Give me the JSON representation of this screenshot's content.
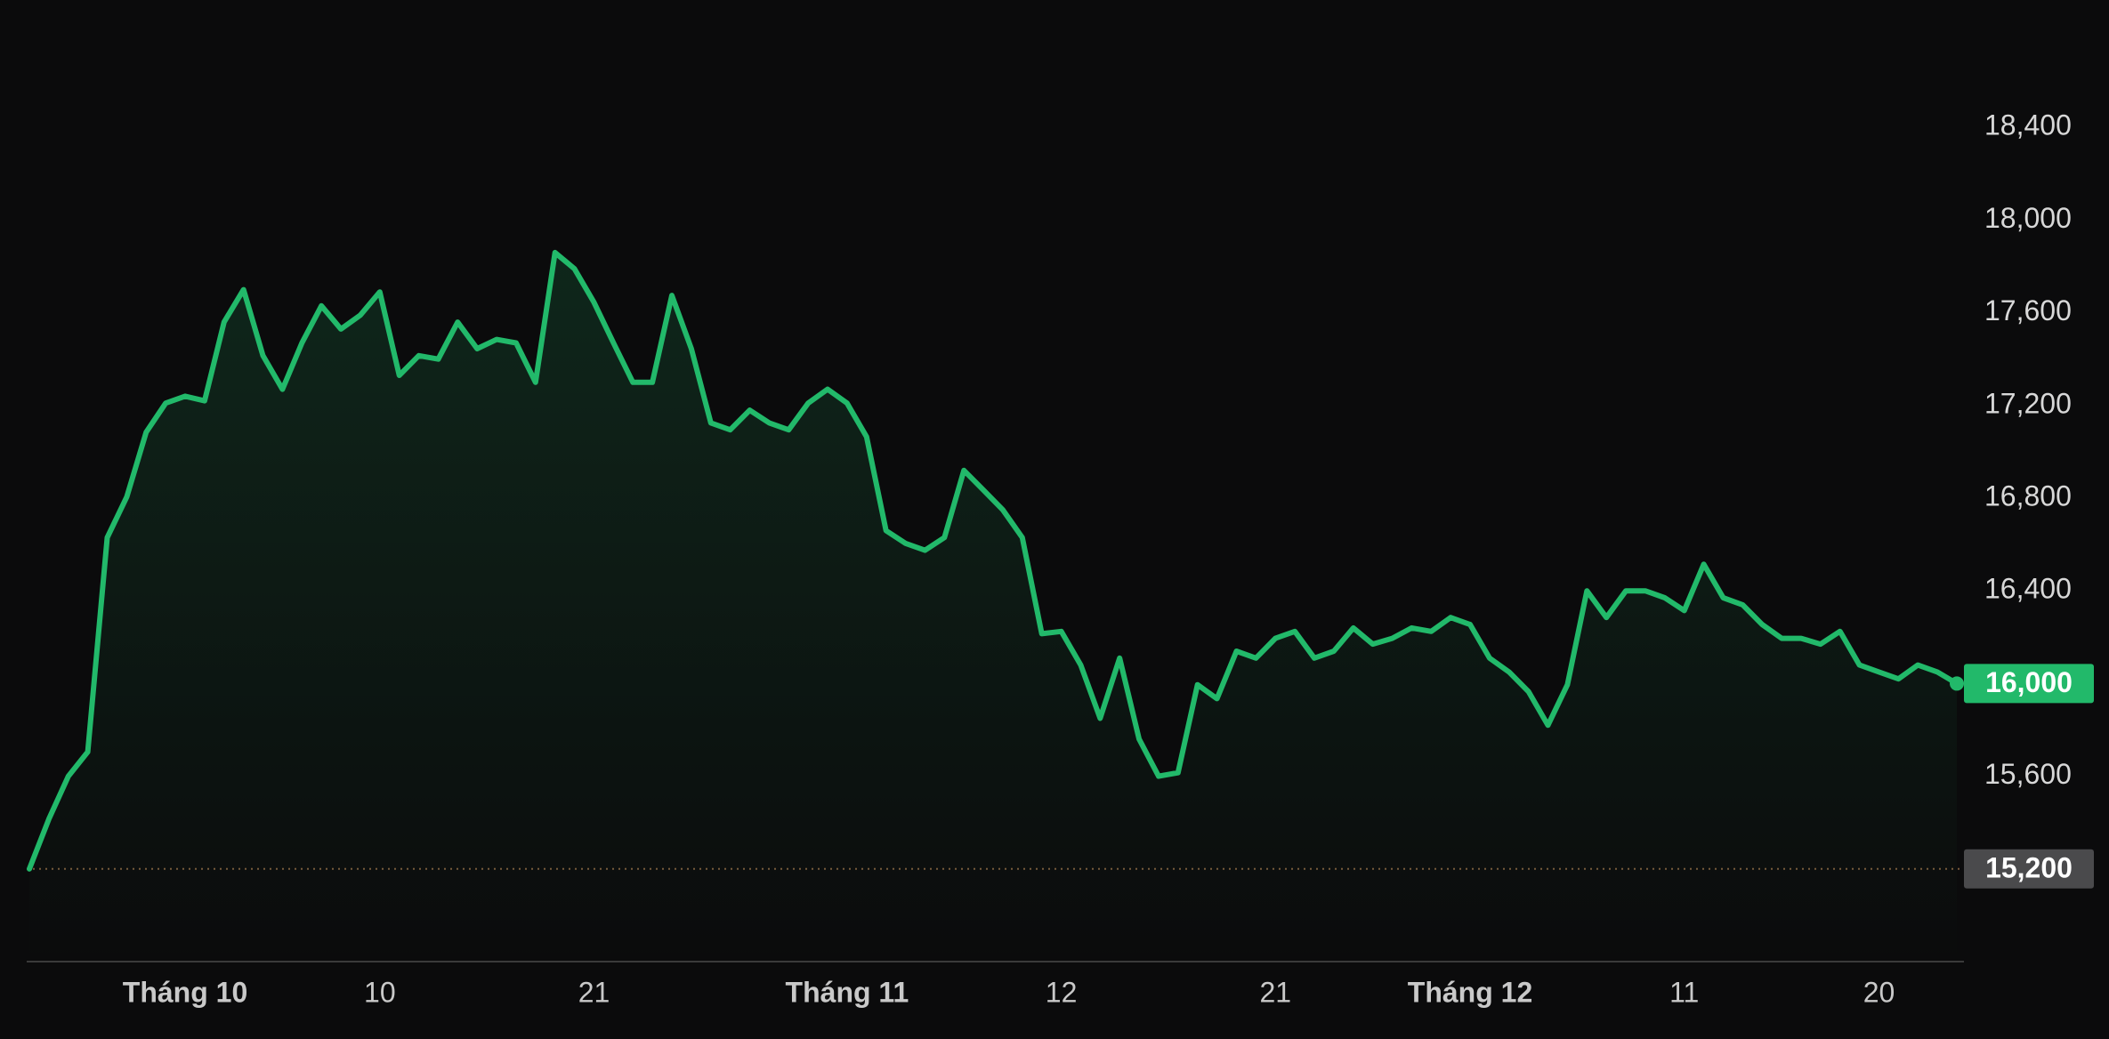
{
  "chart_data": {
    "type": "line",
    "categories": [
      null,
      null,
      null,
      null,
      null,
      null,
      null,
      null,
      "Tháng 10",
      null,
      null,
      null,
      null,
      null,
      null,
      null,
      null,
      null,
      "10",
      null,
      null,
      null,
      null,
      null,
      null,
      null,
      null,
      null,
      null,
      "21",
      null,
      null,
      null,
      null,
      null,
      null,
      null,
      null,
      null,
      null,
      null,
      null,
      "Tháng 11",
      null,
      null,
      null,
      null,
      null,
      null,
      null,
      null,
      null,
      null,
      "12",
      null,
      null,
      null,
      null,
      null,
      null,
      null,
      null,
      null,
      null,
      "21",
      null,
      null,
      null,
      null,
      null,
      null,
      null,
      null,
      null,
      "Tháng 12",
      null,
      null,
      null,
      null,
      null,
      null,
      null,
      null,
      null,
      null,
      "11",
      null,
      null,
      null,
      null,
      null,
      null,
      null,
      null,
      null,
      "20",
      null,
      null,
      null,
      null
    ],
    "series": [
      {
        "color": "#22b96a",
        "values": [
          15200,
          15415,
          15600,
          15705,
          16630,
          16805,
          17085,
          17210,
          17240,
          17220,
          17560,
          17700,
          17415,
          17270,
          17470,
          17630,
          17530,
          17590,
          17690,
          17330,
          17415,
          17400,
          17560,
          17445,
          17485,
          17470,
          17300,
          17860,
          17790,
          17645,
          17470,
          17300,
          17300,
          17675,
          17445,
          17125,
          17095,
          17180,
          17125,
          17095,
          17210,
          17270,
          17210,
          17065,
          16660,
          16605,
          16575,
          16630,
          16920,
          16835,
          16750,
          16630,
          16215,
          16225,
          16080,
          15850,
          16110,
          15760,
          15600,
          15615,
          15995,
          15935,
          16140,
          16110,
          16195,
          16225,
          16110,
          16140,
          16240,
          16170,
          16195,
          16240,
          16225,
          16285,
          16255,
          16110,
          16050,
          15965,
          15820,
          15995,
          16400,
          16285,
          16400,
          16400,
          16370,
          16315,
          16515,
          16370,
          16340,
          16255,
          16195,
          16195,
          16170,
          16225,
          16080,
          16050,
          16020,
          16080,
          16050,
          16000
        ]
      }
    ],
    "ylim": [
      14800,
      18950
    ],
    "yticks": [
      {
        "value": 15600,
        "label": "15,600"
      },
      {
        "value": 16400,
        "label": "16,400"
      },
      {
        "value": 16800,
        "label": "16,800"
      },
      {
        "value": 17200,
        "label": "17,200"
      },
      {
        "value": 17600,
        "label": "17,600"
      },
      {
        "value": 18000,
        "label": "18,000"
      },
      {
        "value": 18400,
        "label": "18,400"
      }
    ],
    "reference_line": {
      "value": 15200,
      "label": "15,200"
    },
    "current_price": {
      "value": 16000,
      "label": "16,000"
    }
  }
}
